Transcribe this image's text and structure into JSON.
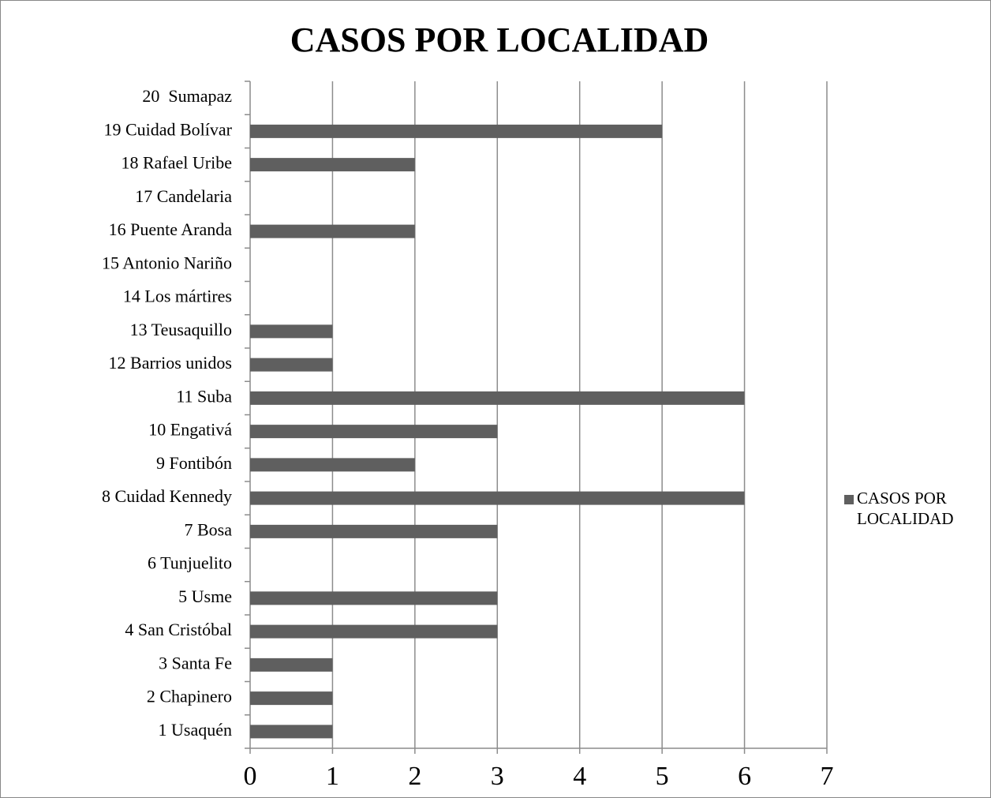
{
  "chart_data": {
    "type": "barh",
    "title": "CASOS POR LOCALIDAD",
    "categories": [
      "1 Usaquén",
      "2 Chapinero",
      "3 Santa Fe",
      "4 San Cristóbal",
      "5 Usme",
      "6 Tunjuelito",
      "7 Bosa",
      "8 Cuidad Kennedy",
      "9 Fontibón",
      "10 Engativá",
      "11 Suba",
      "12 Barrios unidos",
      "13 Teusaquillo",
      "14 Los mártires",
      "15 Antonio Nariño",
      "16 Puente Aranda",
      "17 Candelaria",
      "18 Rafael Uribe",
      "19 Cuidad Bolívar",
      "20  Sumapaz"
    ],
    "series": [
      {
        "name": "CASOS POR LOCALIDAD",
        "color": "#5f5f5f",
        "values": [
          1,
          1,
          1,
          3,
          3,
          0,
          3,
          6,
          2,
          3,
          6,
          1,
          1,
          0,
          0,
          2,
          0,
          2,
          5,
          0
        ]
      }
    ],
    "xlim": [
      0,
      7
    ],
    "xticks": [
      0,
      1,
      2,
      3,
      4,
      5,
      6,
      7
    ],
    "grid": true,
    "legend": "right"
  }
}
